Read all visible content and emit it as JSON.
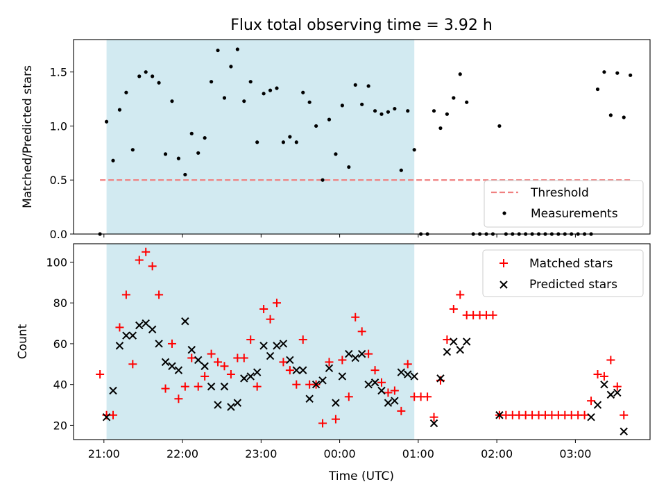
{
  "chart_data": [
    {
      "type": "scatter",
      "title": "Flux total observing time = 3.92 h",
      "ylabel": "Matched/Predicted stars",
      "xlabel": "",
      "ylim": [
        0,
        1.8
      ],
      "y_ticks": [
        "0.0",
        "0.5",
        "1.0",
        "1.5"
      ],
      "threshold": 0.5,
      "observing_window": {
        "start": "21:02",
        "end": "00:57"
      },
      "legend": {
        "position": "lower-right",
        "entries": [
          "Threshold",
          "Measurements"
        ]
      },
      "colors": {
        "threshold": "#f08080",
        "measurements": "#000000",
        "window": "#add8e6"
      },
      "series": [
        {
          "name": "Measurements",
          "points": [
            [
              "20:57",
              0.0
            ],
            [
              "21:02",
              1.04
            ],
            [
              "21:07",
              0.68
            ],
            [
              "21:12",
              1.15
            ],
            [
              "21:17",
              1.31
            ],
            [
              "21:22",
              0.78
            ],
            [
              "21:27",
              1.46
            ],
            [
              "21:32",
              1.5
            ],
            [
              "21:37",
              1.46
            ],
            [
              "21:42",
              1.4
            ],
            [
              "21:47",
              0.74
            ],
            [
              "21:52",
              1.23
            ],
            [
              "21:57",
              0.7
            ],
            [
              "22:02",
              0.55
            ],
            [
              "22:07",
              0.93
            ],
            [
              "22:12",
              0.75
            ],
            [
              "22:17",
              0.89
            ],
            [
              "22:22",
              1.41
            ],
            [
              "22:27",
              1.7
            ],
            [
              "22:32",
              1.26
            ],
            [
              "22:37",
              1.55
            ],
            [
              "22:42",
              1.71
            ],
            [
              "22:47",
              1.23
            ],
            [
              "22:52",
              1.41
            ],
            [
              "22:57",
              0.85
            ],
            [
              "23:02",
              1.3
            ],
            [
              "23:07",
              1.33
            ],
            [
              "23:12",
              1.35
            ],
            [
              "23:17",
              0.85
            ],
            [
              "23:22",
              0.9
            ],
            [
              "23:27",
              0.85
            ],
            [
              "23:32",
              1.31
            ],
            [
              "23:37",
              1.22
            ],
            [
              "23:42",
              1.0
            ],
            [
              "23:47",
              0.5
            ],
            [
              "23:52",
              1.06
            ],
            [
              "23:57",
              0.74
            ],
            [
              "00:02",
              1.19
            ],
            [
              "00:07",
              0.62
            ],
            [
              "00:12",
              1.38
            ],
            [
              "00:17",
              1.2
            ],
            [
              "00:22",
              1.37
            ],
            [
              "00:27",
              1.14
            ],
            [
              "00:32",
              1.11
            ],
            [
              "00:37",
              1.13
            ],
            [
              "00:42",
              1.16
            ],
            [
              "00:47",
              0.59
            ],
            [
              "00:52",
              1.14
            ],
            [
              "00:57",
              0.78
            ],
            [
              "01:02",
              0.0
            ],
            [
              "01:07",
              0.0
            ],
            [
              "01:12",
              1.14
            ],
            [
              "01:17",
              0.98
            ],
            [
              "01:22",
              1.11
            ],
            [
              "01:27",
              1.26
            ],
            [
              "01:32",
              1.48
            ],
            [
              "01:37",
              1.22
            ],
            [
              "01:42",
              0.0
            ],
            [
              "01:47",
              0.0
            ],
            [
              "01:52",
              0.0
            ],
            [
              "01:57",
              0.0
            ],
            [
              "02:02",
              1.0
            ],
            [
              "02:07",
              0.0
            ],
            [
              "02:12",
              0.0
            ],
            [
              "02:17",
              0.0
            ],
            [
              "02:22",
              0.0
            ],
            [
              "02:27",
              0.0
            ],
            [
              "02:32",
              0.0
            ],
            [
              "02:37",
              0.0
            ],
            [
              "02:42",
              0.0
            ],
            [
              "02:47",
              0.0
            ],
            [
              "02:52",
              0.0
            ],
            [
              "02:57",
              0.0
            ],
            [
              "03:02",
              0.0
            ],
            [
              "03:07",
              0.0
            ],
            [
              "03:12",
              0.0
            ],
            [
              "03:17",
              1.34
            ],
            [
              "03:22",
              1.5
            ],
            [
              "03:27",
              1.1
            ],
            [
              "03:32",
              1.49
            ],
            [
              "03:37",
              1.08
            ],
            [
              "03:42",
              1.47
            ]
          ]
        }
      ]
    },
    {
      "type": "scatter",
      "title": "",
      "ylabel": "Count",
      "xlabel": "Time (UTC)",
      "ylim": [
        13,
        109
      ],
      "y_ticks": [
        "20",
        "40",
        "60",
        "80",
        "100"
      ],
      "x_ticks": [
        "21:00",
        "22:00",
        "23:00",
        "00:00",
        "01:00",
        "02:00",
        "03:00"
      ],
      "observing_window": {
        "start": "21:02",
        "end": "00:57"
      },
      "legend": {
        "position": "upper-right",
        "entries": [
          "Matched stars",
          "Predicted stars"
        ]
      },
      "colors": {
        "matched": "#ff0000",
        "predicted": "#000000",
        "window": "#add8e6"
      },
      "series": [
        {
          "name": "Matched stars",
          "points": [
            [
              "20:57",
              45
            ],
            [
              "21:02",
              25
            ],
            [
              "21:07",
              25
            ],
            [
              "21:12",
              68
            ],
            [
              "21:17",
              84
            ],
            [
              "21:22",
              50
            ],
            [
              "21:27",
              101
            ],
            [
              "21:32",
              105
            ],
            [
              "21:37",
              98
            ],
            [
              "21:42",
              84
            ],
            [
              "21:47",
              38
            ],
            [
              "21:52",
              60
            ],
            [
              "21:57",
              33
            ],
            [
              "22:02",
              39
            ],
            [
              "22:07",
              53
            ],
            [
              "22:12",
              39
            ],
            [
              "22:17",
              44
            ],
            [
              "22:22",
              55
            ],
            [
              "22:27",
              51
            ],
            [
              "22:32",
              49
            ],
            [
              "22:37",
              45
            ],
            [
              "22:42",
              53
            ],
            [
              "22:47",
              53
            ],
            [
              "22:52",
              62
            ],
            [
              "22:57",
              39
            ],
            [
              "23:02",
              77
            ],
            [
              "23:07",
              72
            ],
            [
              "23:12",
              80
            ],
            [
              "23:17",
              51
            ],
            [
              "23:22",
              47
            ],
            [
              "23:27",
              40
            ],
            [
              "23:32",
              62
            ],
            [
              "23:37",
              40
            ],
            [
              "23:42",
              40
            ],
            [
              "23:47",
              21
            ],
            [
              "23:52",
              51
            ],
            [
              "23:57",
              23
            ],
            [
              "00:02",
              52
            ],
            [
              "00:07",
              34
            ],
            [
              "00:12",
              73
            ],
            [
              "00:17",
              66
            ],
            [
              "00:22",
              55
            ],
            [
              "00:27",
              47
            ],
            [
              "00:32",
              41
            ],
            [
              "00:37",
              36
            ],
            [
              "00:42",
              37
            ],
            [
              "00:47",
              27
            ],
            [
              "00:52",
              50
            ],
            [
              "00:57",
              34
            ],
            [
              "01:02",
              34
            ],
            [
              "01:07",
              34
            ],
            [
              "01:12",
              24
            ],
            [
              "01:17",
              42
            ],
            [
              "01:22",
              62
            ],
            [
              "01:27",
              77
            ],
            [
              "01:32",
              84
            ],
            [
              "01:37",
              74
            ],
            [
              "01:42",
              74
            ],
            [
              "01:47",
              74
            ],
            [
              "01:52",
              74
            ],
            [
              "01:57",
              74
            ],
            [
              "02:02",
              25
            ],
            [
              "02:07",
              25
            ],
            [
              "02:12",
              25
            ],
            [
              "02:17",
              25
            ],
            [
              "02:22",
              25
            ],
            [
              "02:27",
              25
            ],
            [
              "02:32",
              25
            ],
            [
              "02:37",
              25
            ],
            [
              "02:42",
              25
            ],
            [
              "02:47",
              25
            ],
            [
              "02:52",
              25
            ],
            [
              "02:57",
              25
            ],
            [
              "03:02",
              25
            ],
            [
              "03:07",
              25
            ],
            [
              "03:12",
              32
            ],
            [
              "03:17",
              45
            ],
            [
              "03:22",
              44
            ],
            [
              "03:27",
              52
            ],
            [
              "03:32",
              39
            ],
            [
              "03:37",
              25
            ]
          ]
        },
        {
          "name": "Predicted stars",
          "points": [
            [
              "21:02",
              24
            ],
            [
              "21:07",
              37
            ],
            [
              "21:12",
              59
            ],
            [
              "21:17",
              64
            ],
            [
              "21:22",
              64
            ],
            [
              "21:27",
              69
            ],
            [
              "21:32",
              70
            ],
            [
              "21:37",
              67
            ],
            [
              "21:42",
              60
            ],
            [
              "21:47",
              51
            ],
            [
              "21:52",
              49
            ],
            [
              "21:57",
              47
            ],
            [
              "22:02",
              71
            ],
            [
              "22:07",
              57
            ],
            [
              "22:12",
              52
            ],
            [
              "22:17",
              49
            ],
            [
              "22:22",
              39
            ],
            [
              "22:27",
              30
            ],
            [
              "22:32",
              39
            ],
            [
              "22:37",
              29
            ],
            [
              "22:42",
              31
            ],
            [
              "22:47",
              43
            ],
            [
              "22:52",
              44
            ],
            [
              "22:57",
              46
            ],
            [
              "23:02",
              59
            ],
            [
              "23:07",
              54
            ],
            [
              "23:12",
              59
            ],
            [
              "23:17",
              60
            ],
            [
              "23:22",
              52
            ],
            [
              "23:27",
              47
            ],
            [
              "23:32",
              47
            ],
            [
              "23:37",
              33
            ],
            [
              "23:42",
              40
            ],
            [
              "23:47",
              42
            ],
            [
              "23:52",
              48
            ],
            [
              "23:57",
              31
            ],
            [
              "00:02",
              44
            ],
            [
              "00:07",
              55
            ],
            [
              "00:12",
              53
            ],
            [
              "00:17",
              55
            ],
            [
              "00:22",
              40
            ],
            [
              "00:27",
              41
            ],
            [
              "00:32",
              37
            ],
            [
              "00:37",
              31
            ],
            [
              "00:42",
              32
            ],
            [
              "00:47",
              46
            ],
            [
              "00:52",
              45
            ],
            [
              "00:57",
              44
            ],
            [
              "01:12",
              21
            ],
            [
              "01:17",
              43
            ],
            [
              "01:22",
              56
            ],
            [
              "01:27",
              61
            ],
            [
              "01:32",
              57
            ],
            [
              "01:37",
              61
            ],
            [
              "02:02",
              25
            ],
            [
              "03:12",
              24
            ],
            [
              "03:17",
              30
            ],
            [
              "03:22",
              40
            ],
            [
              "03:27",
              35
            ],
            [
              "03:32",
              36
            ],
            [
              "03:37",
              17
            ]
          ]
        }
      ]
    }
  ]
}
